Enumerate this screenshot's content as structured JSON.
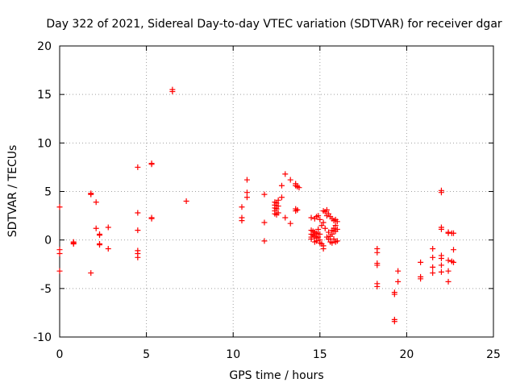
{
  "chart_data": {
    "type": "scatter",
    "title": "Day 322 of 2021, Sidereal Day-to-day VTEC variation (SDTVAR) for receiver dgar",
    "xlabel": "GPS time / hours",
    "ylabel": "SDTVAR / TECUs",
    "xlim": [
      0,
      25
    ],
    "ylim": [
      -10,
      20
    ],
    "xticks": [
      "0",
      "5",
      "10",
      "15",
      "20",
      "25"
    ],
    "yticks": [
      "-10",
      "-5",
      "0",
      "5",
      "10",
      "15",
      "20"
    ],
    "grid": true,
    "marker": "+",
    "color": "#ff0000",
    "series": [
      {
        "name": "SDTVAR",
        "points": [
          [
            0.0,
            3.4
          ],
          [
            0.0,
            -1.0
          ],
          [
            0.0,
            -1.4
          ],
          [
            0.0,
            -3.2
          ],
          [
            0.8,
            -0.2
          ],
          [
            0.8,
            -0.4
          ],
          [
            0.8,
            -0.3
          ],
          [
            1.8,
            4.8
          ],
          [
            1.8,
            4.7
          ],
          [
            1.8,
            -3.4
          ],
          [
            2.1,
            3.9
          ],
          [
            2.1,
            1.2
          ],
          [
            2.3,
            0.6
          ],
          [
            2.3,
            0.5
          ],
          [
            2.3,
            -0.4
          ],
          [
            2.3,
            -0.5
          ],
          [
            2.8,
            1.3
          ],
          [
            2.8,
            -0.9
          ],
          [
            4.5,
            7.5
          ],
          [
            4.5,
            2.8
          ],
          [
            4.5,
            1.0
          ],
          [
            4.5,
            -1.1
          ],
          [
            4.5,
            -1.4
          ],
          [
            4.5,
            -1.8
          ],
          [
            5.3,
            7.9
          ],
          [
            5.3,
            7.8
          ],
          [
            5.3,
            2.3
          ],
          [
            5.3,
            2.2
          ],
          [
            6.5,
            15.5
          ],
          [
            6.5,
            15.3
          ],
          [
            7.3,
            4.0
          ],
          [
            10.5,
            3.4
          ],
          [
            10.5,
            2.3
          ],
          [
            10.5,
            2.0
          ],
          [
            10.8,
            6.2
          ],
          [
            10.8,
            4.9
          ],
          [
            10.8,
            4.4
          ],
          [
            11.8,
            4.7
          ],
          [
            11.8,
            1.8
          ],
          [
            11.8,
            -0.1
          ],
          [
            12.4,
            3.9
          ],
          [
            12.4,
            3.6
          ],
          [
            12.4,
            3.3
          ],
          [
            12.4,
            3.0
          ],
          [
            12.4,
            2.7
          ],
          [
            12.5,
            3.8
          ],
          [
            12.5,
            3.2
          ],
          [
            12.5,
            2.6
          ],
          [
            12.6,
            4.1
          ],
          [
            12.6,
            3.5
          ],
          [
            12.6,
            2.8
          ],
          [
            12.8,
            5.6
          ],
          [
            12.8,
            4.4
          ],
          [
            13.0,
            6.8
          ],
          [
            13.0,
            2.3
          ],
          [
            13.3,
            6.2
          ],
          [
            13.3,
            1.7
          ],
          [
            13.6,
            5.8
          ],
          [
            13.6,
            5.6
          ],
          [
            13.6,
            3.2
          ],
          [
            13.6,
            3.0
          ],
          [
            13.7,
            5.5
          ],
          [
            13.7,
            3.1
          ],
          [
            13.8,
            5.4
          ],
          [
            14.5,
            2.3
          ],
          [
            14.5,
            1.0
          ],
          [
            14.5,
            0.6
          ],
          [
            14.5,
            0.3
          ],
          [
            14.5,
            0.1
          ],
          [
            14.6,
            0.9
          ],
          [
            14.6,
            0.5
          ],
          [
            14.7,
            2.2
          ],
          [
            14.7,
            0.8
          ],
          [
            14.7,
            0.4
          ],
          [
            14.7,
            -0.2
          ],
          [
            14.8,
            2.4
          ],
          [
            14.8,
            0.7
          ],
          [
            14.8,
            0.2
          ],
          [
            14.8,
            -0.1
          ],
          [
            14.9,
            2.5
          ],
          [
            14.9,
            1.1
          ],
          [
            14.9,
            0.6
          ],
          [
            14.9,
            0.3
          ],
          [
            15.0,
            2.1
          ],
          [
            15.0,
            0.6
          ],
          [
            15.0,
            0.0
          ],
          [
            15.0,
            -0.3
          ],
          [
            15.1,
            1.5
          ],
          [
            15.1,
            -0.4
          ],
          [
            15.2,
            3.0
          ],
          [
            15.2,
            1.8
          ],
          [
            15.2,
            -0.6
          ],
          [
            15.2,
            -0.9
          ],
          [
            15.3,
            2.9
          ],
          [
            15.3,
            1.2
          ],
          [
            15.4,
            3.1
          ],
          [
            15.4,
            2.5
          ],
          [
            15.4,
            0.3
          ],
          [
            15.5,
            2.7
          ],
          [
            15.5,
            0.8
          ],
          [
            15.5,
            0.1
          ],
          [
            15.6,
            2.4
          ],
          [
            15.6,
            0.4
          ],
          [
            15.6,
            -0.2
          ],
          [
            15.7,
            2.2
          ],
          [
            15.7,
            1.0
          ],
          [
            15.7,
            0.6
          ],
          [
            15.7,
            -0.3
          ],
          [
            15.8,
            2.0
          ],
          [
            15.8,
            1.2
          ],
          [
            15.8,
            0.9
          ],
          [
            15.8,
            0.1
          ],
          [
            15.9,
            2.1
          ],
          [
            15.9,
            1.5
          ],
          [
            15.9,
            0.9
          ],
          [
            15.9,
            -0.2
          ],
          [
            16.0,
            1.9
          ],
          [
            16.0,
            1.1
          ],
          [
            16.0,
            -0.1
          ],
          [
            18.3,
            -0.9
          ],
          [
            18.3,
            -1.3
          ],
          [
            18.3,
            -2.4
          ],
          [
            18.3,
            -2.6
          ],
          [
            18.3,
            -4.5
          ],
          [
            18.3,
            -4.8
          ],
          [
            19.3,
            -5.4
          ],
          [
            19.3,
            -5.6
          ],
          [
            19.3,
            -8.2
          ],
          [
            19.3,
            -8.4
          ],
          [
            19.5,
            -3.2
          ],
          [
            19.5,
            -4.3
          ],
          [
            20.8,
            -2.3
          ],
          [
            20.8,
            -3.8
          ],
          [
            20.8,
            -4.0
          ],
          [
            21.5,
            -0.9
          ],
          [
            21.5,
            -1.8
          ],
          [
            21.5,
            -2.8
          ],
          [
            21.5,
            -3.4
          ],
          [
            22.0,
            5.1
          ],
          [
            22.0,
            4.9
          ],
          [
            22.0,
            1.3
          ],
          [
            22.0,
            1.1
          ],
          [
            22.0,
            -1.6
          ],
          [
            22.0,
            -1.9
          ],
          [
            22.0,
            -2.6
          ],
          [
            22.0,
            -3.3
          ],
          [
            22.4,
            0.8
          ],
          [
            22.4,
            0.7
          ],
          [
            22.4,
            -2.1
          ],
          [
            22.4,
            -3.2
          ],
          [
            22.4,
            -4.3
          ],
          [
            22.6,
            0.7
          ],
          [
            22.6,
            -2.2
          ],
          [
            22.7,
            0.7
          ],
          [
            22.7,
            -1.0
          ],
          [
            22.7,
            -2.3
          ]
        ]
      }
    ]
  }
}
